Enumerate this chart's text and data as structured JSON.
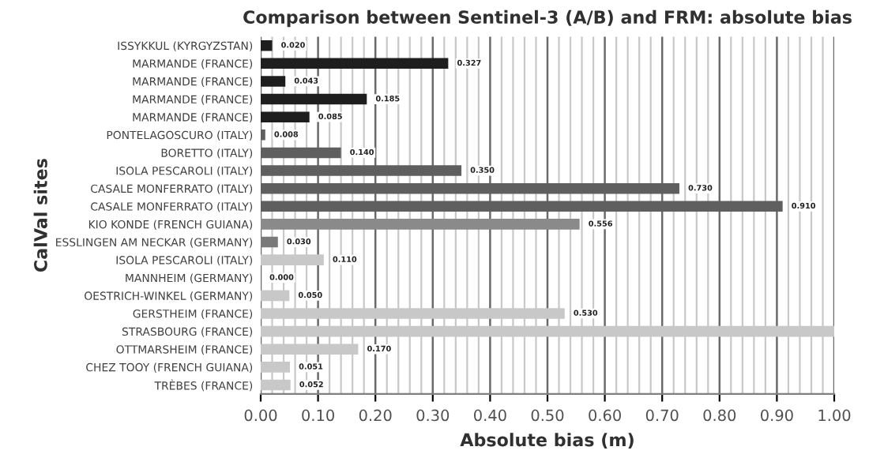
{
  "chart_data": {
    "type": "bar",
    "orientation": "horizontal",
    "title": "Comparison between Sentinel-3 (A/B) and FRM: absolute bias",
    "xlabel": "Absolute bias (m)",
    "ylabel": "CalVal sites",
    "categories": [
      "ISSYKKUL (KYRGYZSTAN)",
      "MARMANDE (FRANCE)",
      "MARMANDE (FRANCE)",
      "MARMANDE (FRANCE)",
      "MARMANDE (FRANCE)",
      "PONTELAGOSCURO (ITALY)",
      "BORETTO (ITALY)",
      "ISOLA PESCAROLI (ITALY)",
      "CASALE MONFERRATO (ITALY)",
      "CASALE MONFERRATO (ITALY)",
      "KIO KONDE (FRENCH GUIANA)",
      "ESSLINGEN AM NECKAR (GERMANY)",
      "ISOLA PESCAROLI (ITALY)",
      "MANNHEIM (GERMANY)",
      "OESTRICH-WINKEL (GERMANY)",
      "GERSTHEIM (FRANCE)",
      "STRASBOURG (FRANCE)",
      "OTTMARSHEIM (FRANCE)",
      "CHEZ TOOY (FRENCH GUIANA)",
      "TRÈBES (FRANCE)"
    ],
    "values": [
      0.02,
      0.327,
      0.043,
      0.185,
      0.085,
      0.008,
      0.14,
      0.35,
      0.73,
      0.91,
      0.556,
      0.03,
      0.11,
      0.0,
      0.05,
      0.53,
      1.0,
      0.17,
      0.051,
      0.052
    ],
    "value_labels": [
      "0.020",
      "0.327",
      "0.043",
      "0.185",
      "0.085",
      "0.008",
      "0.140",
      "0.350",
      "0.730",
      "0.910",
      "0.556",
      "0.030",
      "0.110",
      "0.000",
      "0.050",
      "0.530",
      null,
      "0.170",
      "0.051",
      "0.052"
    ],
    "colors": [
      "#1e1e1e",
      "#1e1e1e",
      "#1e1e1e",
      "#1e1e1e",
      "#1e1e1e",
      "#5f5f5f",
      "#5f5f5f",
      "#5f5f5f",
      "#5f5f5f",
      "#5f5f5f",
      "#8a8a8a",
      "#7a7a7a",
      "#c8c8c8",
      "#c8c8c8",
      "#c8c8c8",
      "#c8c8c8",
      "#c8c8c8",
      "#c8c8c8",
      "#c8c8c8",
      "#c8c8c8"
    ],
    "xlim": [
      0,
      1.0
    ],
    "xticks": [
      {
        "value": 0,
        "label": "0.00"
      },
      {
        "value": 0.1,
        "label": "0.10"
      },
      {
        "value": 0.2,
        "label": "0.20"
      },
      {
        "value": 0.3,
        "label": "0.30"
      },
      {
        "value": 0.4,
        "label": "0.40"
      },
      {
        "value": 0.5,
        "label": "0.50"
      },
      {
        "value": 0.6,
        "label": "0.60"
      },
      {
        "value": 0.7,
        "label": "0.70"
      },
      {
        "value": 0.8,
        "label": "0.80"
      },
      {
        "value": 0.9,
        "label": "0.90"
      },
      {
        "value": 1.0,
        "label": "1.00"
      }
    ],
    "grid": "x"
  }
}
